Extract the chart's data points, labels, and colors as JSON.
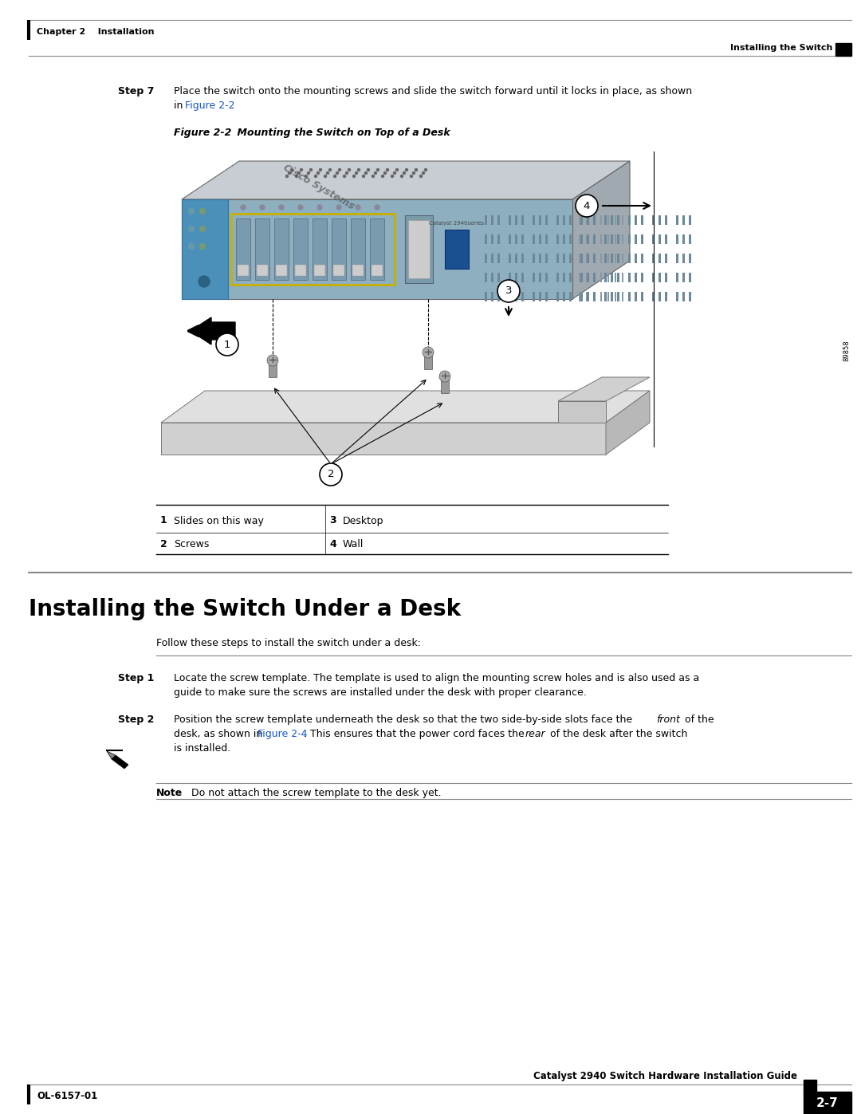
{
  "page_bg": "#ffffff",
  "top_header_left": "Chapter 2    Installation",
  "top_header_right": "Installing the Switch",
  "bottom_footer_left": "OL-6157-01",
  "bottom_footer_right": "Catalyst 2940 Switch Hardware Installation Guide",
  "page_num": "2-7",
  "step7_label": "Step 7",
  "step7_link": "Figure 2-2",
  "figure_label": "Figure 2-2",
  "figure_title": "Mounting the Switch on Top of a Desk",
  "legend_items": [
    {
      "num": "1",
      "desc": "Slides on this way"
    },
    {
      "num": "2",
      "desc": "Screws"
    },
    {
      "num": "3",
      "desc": "Desktop"
    },
    {
      "num": "4",
      "desc": "Wall"
    }
  ],
  "section_title": "Installing the Switch Under a Desk",
  "follow_text": "Follow these steps to install the switch under a desk:",
  "step1_label": "Step 1",
  "step2_label": "Step 2",
  "step2_link": "Figure 2-4",
  "note_label": "Note",
  "note_text": "Do not attach the screw template to the desk yet.",
  "sidebar_text": "89858",
  "link_color": "#1155cc",
  "text_color": "#000000"
}
